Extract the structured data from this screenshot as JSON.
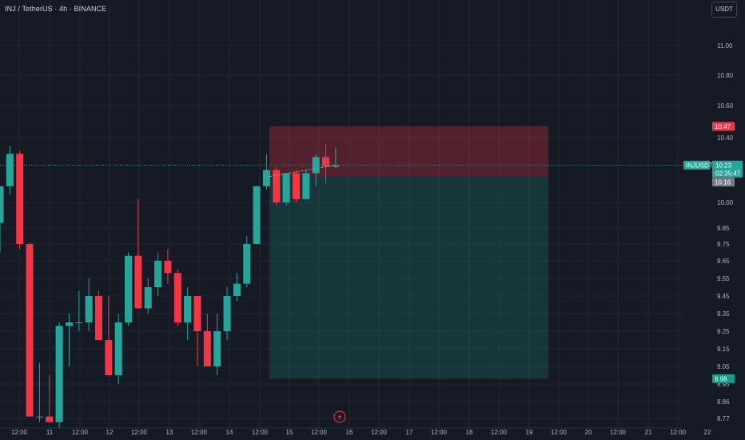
{
  "header": {
    "symbol_title": "INJ / TetherUS · 4h · BINANCE",
    "currency_label": "USDT"
  },
  "price_axis": {
    "ticks": [
      "11.00",
      "10.80",
      "10.60",
      "10.40",
      "10.00",
      "9.85",
      "9.75",
      "9.65",
      "9.55",
      "9.45",
      "9.35",
      "9.25",
      "9.15",
      "9.05",
      "8.95",
      "8.86",
      "8.77"
    ],
    "tick_values": [
      11.0,
      10.8,
      10.6,
      10.4,
      10.0,
      9.85,
      9.75,
      9.65,
      9.55,
      9.45,
      9.35,
      9.25,
      9.15,
      9.05,
      8.95,
      8.86,
      8.77
    ]
  },
  "time_axis": {
    "labels": [
      "12:00",
      "11",
      "12:00",
      "12",
      "12:00",
      "13",
      "12:00",
      "14",
      "12:00",
      "15",
      "12:00",
      "16",
      "12:00",
      "17",
      "12:00",
      "18",
      "12:00",
      "19",
      "12:00",
      "20",
      "12:00",
      "21",
      "12:00",
      "22"
    ]
  },
  "price_tags": {
    "stop_loss": "10.47",
    "symbol": "INJUSDT",
    "last_price": "10.23",
    "countdown": "02:35:47",
    "entry": "10.16",
    "take_profit": "8.98"
  },
  "colors": {
    "up": "#26a69a",
    "down": "#f23645",
    "background": "#161a25",
    "grid": "#232632",
    "risk_zone": "#f23645",
    "reward_zone": "#1a9b8a",
    "entry_tag": "#787b86"
  },
  "chart_data": {
    "type": "candlestick",
    "symbol": "INJ / TetherUS",
    "interval": "4h",
    "exchange": "BINANCE",
    "candles": [
      {
        "o": 9.88,
        "h": 10.1,
        "l": 9.7,
        "c": 10.1
      },
      {
        "o": 10.1,
        "h": 10.35,
        "l": 10.05,
        "c": 10.3
      },
      {
        "o": 10.3,
        "h": 10.32,
        "l": 9.72,
        "c": 9.75
      },
      {
        "o": 9.75,
        "h": 9.76,
        "l": 8.78,
        "c": 8.78
      },
      {
        "o": 8.78,
        "h": 9.07,
        "l": 8.75,
        "c": 8.78
      },
      {
        "o": 8.78,
        "h": 9.0,
        "l": 8.75,
        "c": 8.75
      },
      {
        "o": 8.75,
        "h": 9.3,
        "l": 8.72,
        "c": 9.28
      },
      {
        "o": 9.28,
        "h": 9.35,
        "l": 9.05,
        "c": 9.3
      },
      {
        "o": 9.3,
        "h": 9.48,
        "l": 9.25,
        "c": 9.3
      },
      {
        "o": 9.3,
        "h": 9.55,
        "l": 9.25,
        "c": 9.45
      },
      {
        "o": 9.45,
        "h": 9.48,
        "l": 9.2,
        "c": 9.2
      },
      {
        "o": 9.2,
        "h": 9.45,
        "l": 9.0,
        "c": 9.0
      },
      {
        "o": 9.0,
        "h": 9.35,
        "l": 8.95,
        "c": 9.3
      },
      {
        "o": 9.3,
        "h": 9.7,
        "l": 9.28,
        "c": 9.68
      },
      {
        "o": 9.68,
        "h": 10.02,
        "l": 9.4,
        "c": 9.38
      },
      {
        "o": 9.38,
        "h": 9.55,
        "l": 9.35,
        "c": 9.5
      },
      {
        "o": 9.5,
        "h": 9.7,
        "l": 9.45,
        "c": 9.65
      },
      {
        "o": 9.65,
        "h": 9.72,
        "l": 9.52,
        "c": 9.58
      },
      {
        "o": 9.58,
        "h": 9.6,
        "l": 9.28,
        "c": 9.3
      },
      {
        "o": 9.3,
        "h": 9.5,
        "l": 9.2,
        "c": 9.45
      },
      {
        "o": 9.45,
        "h": 9.45,
        "l": 9.05,
        "c": 9.25
      },
      {
        "o": 9.25,
        "h": 9.35,
        "l": 9.05,
        "c": 9.05
      },
      {
        "o": 9.05,
        "h": 9.35,
        "l": 9.0,
        "c": 9.25
      },
      {
        "o": 9.25,
        "h": 9.5,
        "l": 9.2,
        "c": 9.45
      },
      {
        "o": 9.45,
        "h": 9.58,
        "l": 9.42,
        "c": 9.52
      },
      {
        "o": 9.52,
        "h": 9.8,
        "l": 9.5,
        "c": 9.75
      },
      {
        "o": 9.75,
        "h": 10.1,
        "l": 9.75,
        "c": 10.1
      },
      {
        "o": 10.1,
        "h": 10.3,
        "l": 10.08,
        "c": 10.2
      },
      {
        "o": 10.2,
        "h": 10.22,
        "l": 9.98,
        "c": 10.0
      },
      {
        "o": 10.0,
        "h": 10.18,
        "l": 9.98,
        "c": 10.18
      },
      {
        "o": 10.18,
        "h": 10.2,
        "l": 10.0,
        "c": 10.02
      },
      {
        "o": 10.02,
        "h": 10.2,
        "l": 10.02,
        "c": 10.18
      },
      {
        "o": 10.18,
        "h": 10.3,
        "l": 10.1,
        "c": 10.28
      },
      {
        "o": 10.28,
        "h": 10.36,
        "l": 10.12,
        "c": 10.22
      },
      {
        "o": 10.22,
        "h": 10.34,
        "l": 10.21,
        "c": 10.23
      }
    ],
    "position": {
      "type": "short",
      "entry": 10.16,
      "stop_loss": 10.47,
      "take_profit": 8.98
    },
    "last_price": 10.23,
    "ylim": [
      8.73,
      11.2
    ],
    "grid": true
  }
}
